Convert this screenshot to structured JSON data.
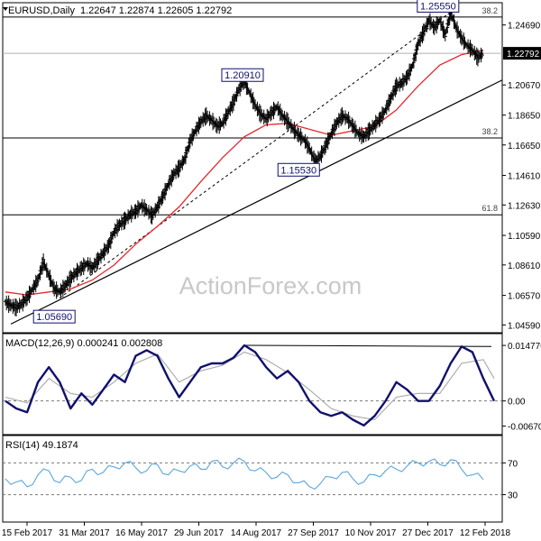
{
  "header": {
    "symbol": "EURUSD,Daily",
    "ohlc": "1.22647 1.22874 1.22605 1.22792"
  },
  "watermark": "ActionForex.com",
  "colors": {
    "price": "#000000",
    "ma": "#e8252b",
    "macd": "#10106e",
    "signal": "#a8a8a8",
    "rsi": "#5ba7dc",
    "frame": "#000000",
    "grid": "#cfcfcf"
  },
  "chart_data": [
    {
      "type": "line",
      "title": "EURUSD,Daily",
      "y_ticks": [
        "1.24690",
        "1.22792",
        "1.20670",
        "1.18650",
        "1.16650",
        "1.14610",
        "1.12630",
        "1.10590",
        "1.08610",
        "1.06570",
        "1.04590"
      ],
      "ylim": [
        1.0425,
        1.26
      ],
      "x_ticks": [
        "15 Feb 2017",
        "31 Mar 2017",
        "16 May 2017",
        "29 Jun 2017",
        "14 Aug 2017",
        "27 Sep 2017",
        "10 Nov 2017",
        "27 Dec 2017",
        "12 Feb 2018"
      ],
      "current_price": "1.22792",
      "annotations": [
        {
          "label": "1.25550",
          "value": 1.2555
        },
        {
          "label": "1.20910",
          "value": 1.2091
        },
        {
          "label": "1.15530",
          "value": 1.1553
        },
        {
          "label": "1.05690",
          "value": 1.0569
        }
      ],
      "fib_levels": [
        {
          "label": "38.2",
          "value": 1.2522
        },
        {
          "label": "38.2",
          "value": 1.1712
        },
        {
          "label": "61.8",
          "value": 1.1197
        }
      ],
      "series": [
        {
          "name": "",
          "points": [
            [
              0,
              1.061
            ],
            [
              5,
              1.059
            ],
            [
              10,
              1.0575
            ],
            [
              15,
              1.06
            ],
            [
              20,
              1.064
            ],
            [
              25,
              1.07
            ],
            [
              30,
              1.076
            ],
            [
              35,
              1.088
            ],
            [
              40,
              1.079
            ],
            [
              45,
              1.07
            ],
            [
              50,
              1.068
            ],
            [
              55,
              1.072
            ],
            [
              60,
              1.077
            ],
            [
              65,
              1.081
            ],
            [
              70,
              1.084
            ],
            [
              75,
              1.087
            ],
            [
              80,
              1.084
            ],
            [
              85,
              1.089
            ],
            [
              90,
              1.094
            ],
            [
              95,
              1.099
            ],
            [
              100,
              1.108
            ],
            [
              105,
              1.113
            ],
            [
              110,
              1.116
            ],
            [
              115,
              1.12
            ],
            [
              120,
              1.122
            ],
            [
              125,
              1.126
            ],
            [
              130,
              1.123
            ],
            [
              135,
              1.119
            ],
            [
              140,
              1.125
            ],
            [
              145,
              1.132
            ],
            [
              150,
              1.14
            ],
            [
              155,
              1.147
            ],
            [
              160,
              1.151
            ],
            [
              165,
              1.157
            ],
            [
              170,
              1.169
            ],
            [
              175,
              1.176
            ],
            [
              180,
              1.182
            ],
            [
              185,
              1.186
            ],
            [
              190,
              1.183
            ],
            [
              195,
              1.179
            ],
            [
              200,
              1.181
            ],
            [
              205,
              1.188
            ],
            [
              210,
              1.195
            ],
            [
              215,
              1.204
            ],
            [
              220,
              1.2091
            ],
            [
              225,
              1.201
            ],
            [
              230,
              1.193
            ],
            [
              235,
              1.187
            ],
            [
              240,
              1.184
            ],
            [
              245,
              1.188
            ],
            [
              250,
              1.192
            ],
            [
              255,
              1.186
            ],
            [
              260,
              1.182
            ],
            [
              265,
              1.177
            ],
            [
              270,
              1.173
            ],
            [
              275,
              1.17
            ],
            [
              280,
              1.164
            ],
            [
              285,
              1.1553
            ],
            [
              290,
              1.159
            ],
            [
              295,
              1.166
            ],
            [
              300,
              1.174
            ],
            [
              305,
              1.181
            ],
            [
              310,
              1.186
            ],
            [
              315,
              1.184
            ],
            [
              320,
              1.179
            ],
            [
              325,
              1.174
            ],
            [
              330,
              1.172
            ],
            [
              335,
              1.176
            ],
            [
              340,
              1.18
            ],
            [
              345,
              1.184
            ],
            [
              350,
              1.19
            ],
            [
              355,
              1.198
            ],
            [
              360,
              1.206
            ],
            [
              365,
              1.208
            ],
            [
              370,
              1.212
            ],
            [
              375,
              1.22
            ],
            [
              380,
              1.234
            ],
            [
              385,
              1.242
            ],
            [
              390,
              1.25
            ],
            [
              395,
              1.245
            ],
            [
              400,
              1.25
            ],
            [
              405,
              1.24
            ],
            [
              410,
              1.2555
            ],
            [
              415,
              1.245
            ],
            [
              420,
              1.238
            ],
            [
              425,
              1.233
            ],
            [
              430,
              1.23
            ],
            [
              435,
              1.225
            ],
            [
              440,
              1.2279
            ]
          ]
        },
        {
          "name": "",
          "points": [
            [
              0,
              1.068
            ],
            [
              20,
              1.066
            ],
            [
              40,
              1.068
            ],
            [
              60,
              1.07
            ],
            [
              80,
              1.076
            ],
            [
              100,
              1.086
            ],
            [
              120,
              1.1
            ],
            [
              140,
              1.112
            ],
            [
              160,
              1.125
            ],
            [
              180,
              1.142
            ],
            [
              200,
              1.158
            ],
            [
              220,
              1.172
            ],
            [
              240,
              1.18
            ],
            [
              260,
              1.181
            ],
            [
              280,
              1.177
            ],
            [
              300,
              1.173
            ],
            [
              320,
              1.176
            ],
            [
              340,
              1.179
            ],
            [
              360,
              1.19
            ],
            [
              380,
              1.206
            ],
            [
              400,
              1.22
            ],
            [
              420,
              1.227
            ],
            [
              440,
              1.23
            ]
          ]
        }
      ]
    },
    {
      "type": "line",
      "title": "MACD(12,26,9) 0.000241 0.002808",
      "y_ticks": [
        "0.014776",
        "0.00",
        "-0.006705"
      ],
      "ylim": [
        -0.008,
        0.016
      ],
      "series": [
        {
          "name": "",
          "points": [
            [
              0,
              0.0
            ],
            [
              10,
              -0.002
            ],
            [
              20,
              -0.003
            ],
            [
              30,
              0.005
            ],
            [
              40,
              0.009
            ],
            [
              50,
              0.005
            ],
            [
              60,
              -0.002
            ],
            [
              70,
              0.002
            ],
            [
              80,
              -0.001
            ],
            [
              90,
              0.003
            ],
            [
              100,
              0.007
            ],
            [
              110,
              0.005
            ],
            [
              120,
              0.012
            ],
            [
              130,
              0.0135
            ],
            [
              140,
              0.012
            ],
            [
              150,
              0.006
            ],
            [
              160,
              0.001
            ],
            [
              170,
              0.005
            ],
            [
              180,
              0.009
            ],
            [
              190,
              0.01
            ],
            [
              200,
              0.01
            ],
            [
              210,
              0.0115
            ],
            [
              220,
              0.0148
            ],
            [
              230,
              0.013
            ],
            [
              240,
              0.009
            ],
            [
              250,
              0.006
            ],
            [
              260,
              0.008
            ],
            [
              270,
              0.005
            ],
            [
              280,
              0.0
            ],
            [
              290,
              -0.003
            ],
            [
              300,
              -0.004
            ],
            [
              310,
              -0.003
            ],
            [
              320,
              -0.005
            ],
            [
              330,
              -0.0065
            ],
            [
              340,
              -0.004
            ],
            [
              350,
              0.0
            ],
            [
              360,
              0.005
            ],
            [
              370,
              0.003
            ],
            [
              380,
              0.0
            ],
            [
              390,
              0.0
            ],
            [
              400,
              0.004
            ],
            [
              410,
              0.01
            ],
            [
              420,
              0.0145
            ],
            [
              430,
              0.013
            ],
            [
              440,
              0.006
            ],
            [
              450,
              0.0
            ]
          ]
        },
        {
          "name": "",
          "points": [
            [
              0,
              0.001
            ],
            [
              20,
              -0.0005
            ],
            [
              40,
              0.006
            ],
            [
              60,
              0.002
            ],
            [
              80,
              0.001
            ],
            [
              100,
              0.005
            ],
            [
              120,
              0.01
            ],
            [
              140,
              0.0125
            ],
            [
              160,
              0.005
            ],
            [
              180,
              0.008
            ],
            [
              200,
              0.0095
            ],
            [
              220,
              0.013
            ],
            [
              240,
              0.011
            ],
            [
              260,
              0.0075
            ],
            [
              280,
              0.003
            ],
            [
              300,
              -0.002
            ],
            [
              320,
              -0.004
            ],
            [
              340,
              -0.005
            ],
            [
              360,
              0.001
            ],
            [
              380,
              0.002
            ],
            [
              400,
              0.002
            ],
            [
              420,
              0.01
            ],
            [
              440,
              0.011
            ],
            [
              450,
              0.006
            ]
          ]
        }
      ]
    },
    {
      "type": "line",
      "title": "RSI(14) 49.1874",
      "y_ticks": [
        "70",
        "30"
      ],
      "ylim": [
        0,
        100
      ],
      "levels": [
        70,
        30
      ],
      "series": [
        {
          "name": "",
          "points": [
            [
              0,
              50
            ],
            [
              10,
              46
            ],
            [
              20,
              40
            ],
            [
              30,
              55
            ],
            [
              40,
              60
            ],
            [
              50,
              45
            ],
            [
              60,
              52
            ],
            [
              70,
              48
            ],
            [
              80,
              62
            ],
            [
              90,
              58
            ],
            [
              100,
              65
            ],
            [
              110,
              70
            ],
            [
              120,
              64
            ],
            [
              130,
              60
            ],
            [
              140,
              68
            ],
            [
              150,
              55
            ],
            [
              160,
              60
            ],
            [
              170,
              66
            ],
            [
              180,
              62
            ],
            [
              190,
              72
            ],
            [
              200,
              65
            ],
            [
              210,
              70
            ],
            [
              220,
              72
            ],
            [
              230,
              60
            ],
            [
              240,
              58
            ],
            [
              250,
              52
            ],
            [
              260,
              55
            ],
            [
              270,
              45
            ],
            [
              280,
              40
            ],
            [
              290,
              44
            ],
            [
              300,
              52
            ],
            [
              310,
              58
            ],
            [
              320,
              50
            ],
            [
              330,
              46
            ],
            [
              340,
              55
            ],
            [
              350,
              60
            ],
            [
              360,
              62
            ],
            [
              370,
              66
            ],
            [
              380,
              70
            ],
            [
              390,
              72
            ],
            [
              400,
              68
            ],
            [
              410,
              74
            ],
            [
              420,
              62
            ],
            [
              430,
              55
            ],
            [
              440,
              49
            ]
          ]
        }
      ]
    }
  ]
}
